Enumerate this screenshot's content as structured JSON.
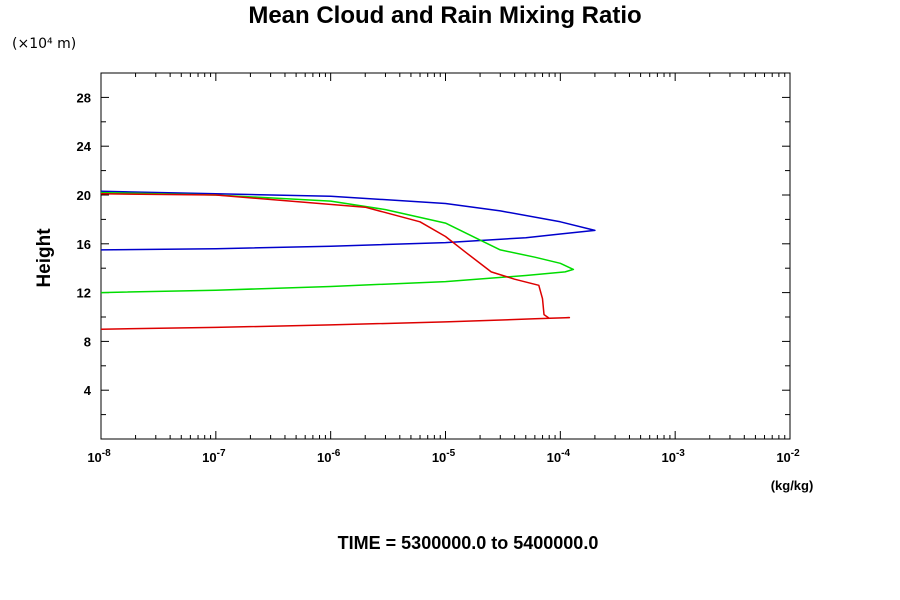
{
  "chart_data": {
    "type": "line",
    "title": "Mean Cloud and Rain Mixing Ratio",
    "y_unit_label": "(×10⁴ m)",
    "ylabel": "Height",
    "xlabel_unit": "(kg/kg)",
    "footer": "TIME = 5300000.0 to 5400000.0",
    "x_scale": "log",
    "xlim": [
      1e-08,
      0.01
    ],
    "x_ticks": [
      {
        "value": 1e-08,
        "base": "10",
        "exp": "-8"
      },
      {
        "value": 1e-07,
        "base": "10",
        "exp": "-7"
      },
      {
        "value": 1e-06,
        "base": "10",
        "exp": "-6"
      },
      {
        "value": 1e-05,
        "base": "10",
        "exp": "-5"
      },
      {
        "value": 0.0001,
        "base": "10",
        "exp": "-4"
      },
      {
        "value": 0.001,
        "base": "10",
        "exp": "-3"
      },
      {
        "value": 0.01,
        "base": "10",
        "exp": "-2"
      }
    ],
    "ylim": [
      0,
      30
    ],
    "y_ticks": [
      "4",
      "8",
      "12",
      "16",
      "20",
      "24",
      "28"
    ],
    "grid": false,
    "series": [
      {
        "color": "#0000cc",
        "points": [
          [
            1e-08,
            15.5
          ],
          [
            1e-07,
            15.6
          ],
          [
            1e-06,
            15.8
          ],
          [
            1e-05,
            16.1
          ],
          [
            5e-05,
            16.5
          ],
          [
            0.0001,
            16.8
          ],
          [
            0.0002,
            17.1
          ],
          [
            0.0001,
            17.8
          ],
          [
            3e-05,
            18.7
          ],
          [
            1e-05,
            19.3
          ],
          [
            1e-06,
            19.9
          ],
          [
            1e-07,
            20.1
          ],
          [
            1e-08,
            20.3
          ]
        ]
      },
      {
        "color": "#00dd00",
        "points": [
          [
            1e-08,
            12.0
          ],
          [
            1e-07,
            12.2
          ],
          [
            1e-06,
            12.5
          ],
          [
            1e-05,
            12.9
          ],
          [
            5e-05,
            13.4
          ],
          [
            0.00011,
            13.7
          ],
          [
            0.00013,
            13.9
          ],
          [
            0.0001,
            14.4
          ],
          [
            6e-05,
            14.9
          ],
          [
            3e-05,
            15.5
          ],
          [
            2e-05,
            16.3
          ],
          [
            1e-05,
            17.7
          ],
          [
            3e-06,
            18.8
          ],
          [
            1e-06,
            19.5
          ],
          [
            1e-07,
            20.0
          ],
          [
            1e-08,
            20.2
          ]
        ]
      },
      {
        "color": "#dd0000",
        "points": [
          [
            1e-08,
            9.0
          ],
          [
            1e-07,
            9.15
          ],
          [
            1e-06,
            9.35
          ],
          [
            1e-05,
            9.6
          ],
          [
            6e-05,
            9.85
          ],
          [
            0.00012,
            9.95
          ],
          [
            8e-05,
            9.9
          ],
          [
            7.2e-05,
            10.2
          ],
          [
            7e-05,
            11.5
          ],
          [
            6.5e-05,
            12.6
          ],
          [
            4e-05,
            13.1
          ],
          [
            2.5e-05,
            13.7
          ],
          [
            1.5e-05,
            15.3
          ],
          [
            1e-05,
            16.6
          ],
          [
            6e-06,
            17.8
          ],
          [
            2e-06,
            19.0
          ],
          [
            1e-07,
            20.0
          ],
          [
            1e-08,
            20.1
          ]
        ]
      }
    ]
  }
}
